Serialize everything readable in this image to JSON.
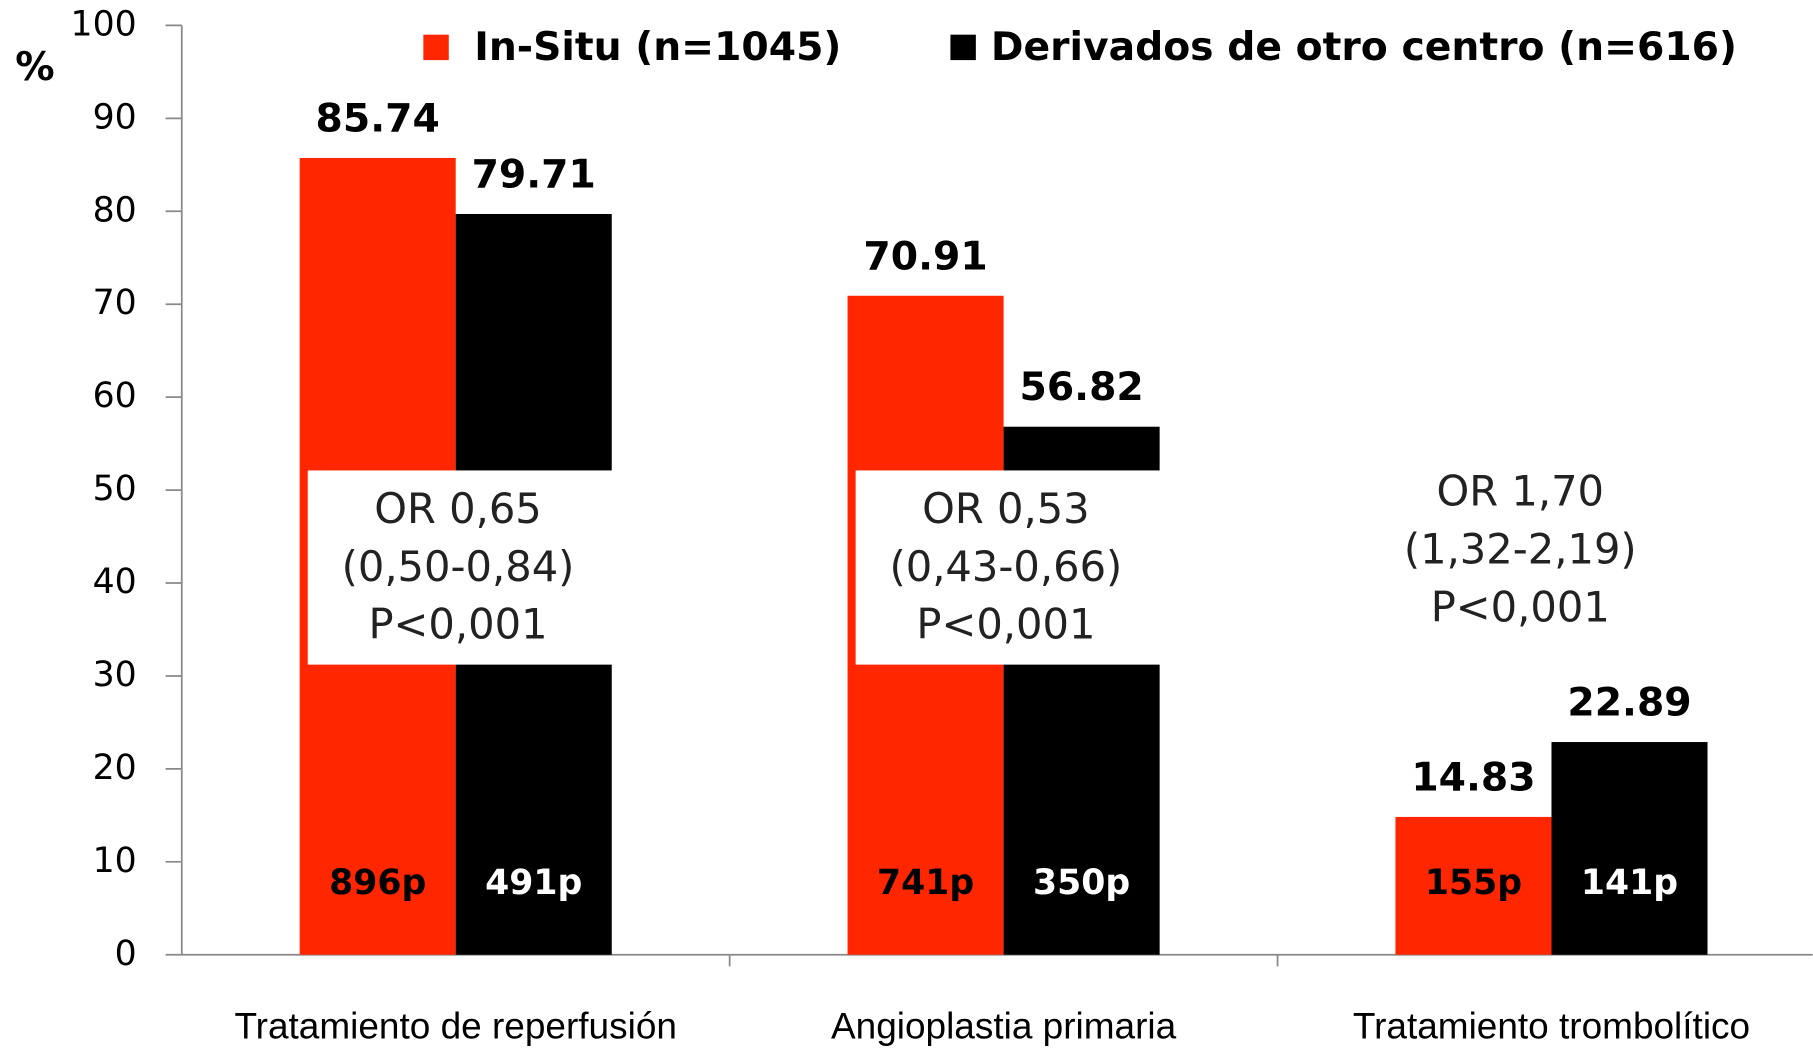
{
  "chart_data": {
    "type": "bar",
    "y_label": "%",
    "categories": [
      "Tratamiento de reperfusión",
      "Angioplastia primaria",
      "Tratamiento trombolítico"
    ],
    "series": [
      {
        "name": "In-Situ (n=1045)",
        "color": "#ff2600",
        "values": [
          85.74,
          70.91,
          14.83
        ],
        "count_labels": [
          "896p",
          "741p",
          "155p"
        ],
        "count_label_color": "#000000"
      },
      {
        "name": "Derivados de otro centro (n=616)",
        "color": "#000000",
        "values": [
          79.71,
          56.82,
          22.89
        ],
        "count_labels": [
          "491p",
          "350p",
          "141p"
        ],
        "count_label_color": "#ffffff"
      }
    ],
    "annotations": [
      {
        "lines": [
          "OR 0,65",
          "(0,50-0,84)",
          "P<0,001"
        ],
        "boxed": true
      },
      {
        "lines": [
          "OR 0,53",
          "(0,43-0,66)",
          "P<0,001"
        ],
        "boxed": true
      },
      {
        "lines": [
          "OR 1,70",
          "(1,32-2,19)",
          "P<0,001"
        ],
        "boxed": false
      }
    ],
    "ylim": [
      0,
      100
    ],
    "yticks": [
      0,
      10,
      20,
      30,
      40,
      50,
      60,
      70,
      80,
      90,
      100
    ],
    "grid": false,
    "legend": "top"
  }
}
